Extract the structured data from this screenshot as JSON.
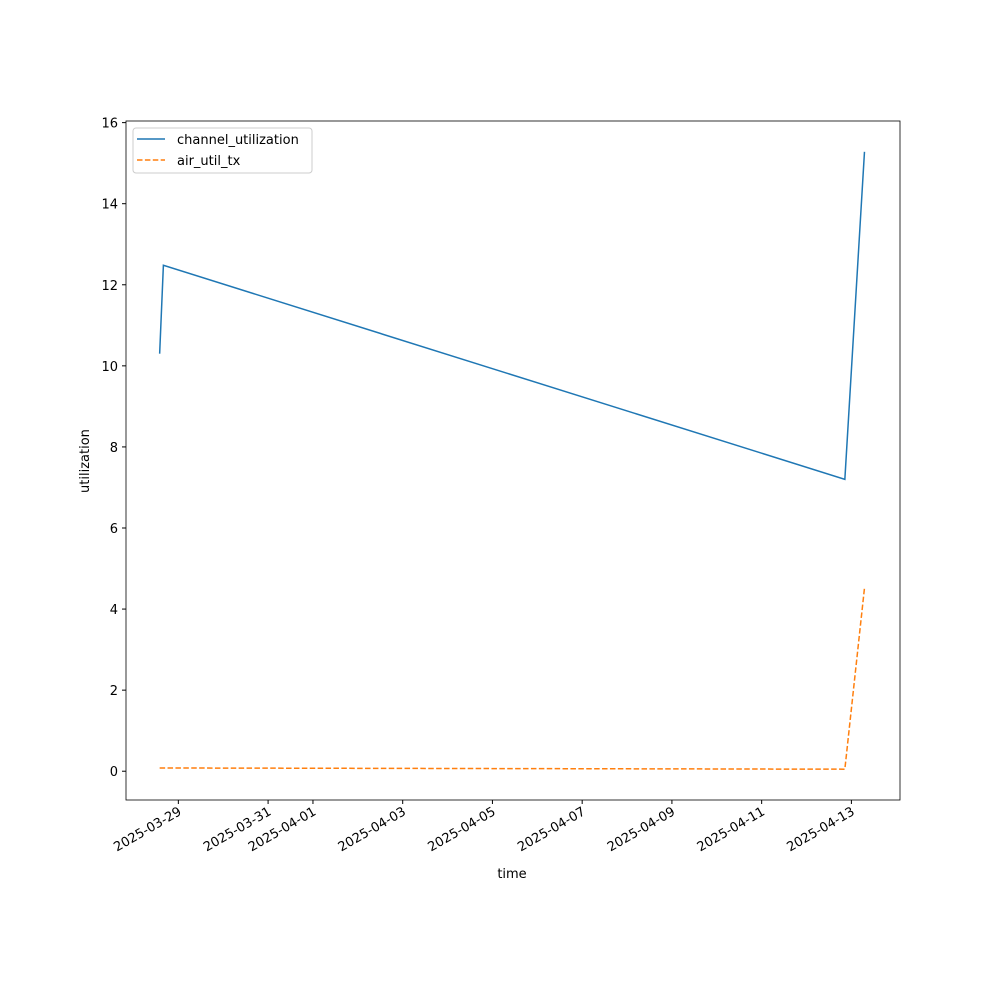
{
  "chart_data": {
    "type": "line",
    "x_label": "time",
    "y_label": "utilization",
    "x": [
      "2025-03-28T14:00",
      "2025-03-28T16:00",
      "2025-04-12T20:30",
      "2025-04-13T07:00"
    ],
    "series": [
      {
        "name": "channel_utilization",
        "color": "#1f77b4",
        "dash": "solid",
        "values": [
          10.3,
          12.48,
          7.2,
          15.28
        ]
      },
      {
        "name": "air_util_tx",
        "color": "#ff7f0e",
        "dash": "dashed",
        "values": [
          0.08,
          0.08,
          0.05,
          4.52
        ]
      }
    ],
    "xlim": [
      "2025-03-27T20:00",
      "2025-04-14T02:00"
    ],
    "xticks": [
      "2025-03-29",
      "2025-03-31",
      "2025-04-01",
      "2025-04-03",
      "2025-04-05",
      "2025-04-07",
      "2025-04-09",
      "2025-04-11",
      "2025-04-13"
    ],
    "ylim": [
      -0.71,
      16.04
    ],
    "yticks": [
      0,
      2,
      4,
      6,
      8,
      10,
      12,
      14,
      16
    ],
    "legend": "upper left",
    "grid": false
  }
}
